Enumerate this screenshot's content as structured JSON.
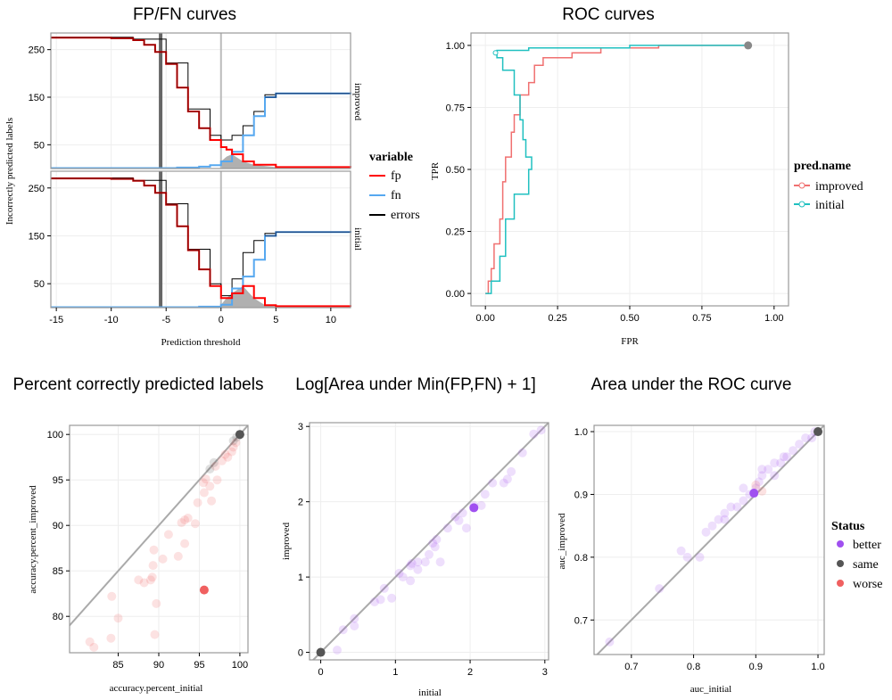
{
  "titles": {
    "fpfn": "FP/FN curves",
    "roc": "ROC curves",
    "acc": "Percent correctly predicted labels",
    "logarea": "Log[Area under Min(FP,FN) + 1]",
    "auc": "Area under the ROC curve"
  },
  "colors": {
    "fp": "#ff0000",
    "fp_dark": "#8b0000",
    "fn": "#56a8f0",
    "fn_dark": "#1f4e8a",
    "errors": "#000000",
    "improved": "#f07070",
    "initial": "#20c0c0",
    "better": "#a050f0",
    "same": "#555555",
    "worse": "#f06060",
    "threshold_line": "#666666",
    "zero_line": "#bbbbbb",
    "diag": "#aaaaaa",
    "fill": "#b0b0b0"
  },
  "chart_data": [
    {
      "type": "line",
      "title": "FP/FN curves",
      "xlabel": "Prediction threshold",
      "ylabel": "Incorrectly predicted labels",
      "xlim": [
        -15.5,
        11.8
      ],
      "ylim": [
        0,
        285
      ],
      "xticks": [
        "-15",
        "-10",
        "-5",
        "0",
        "5",
        "10"
      ],
      "yticks": [
        "50",
        "150",
        "250"
      ],
      "facets": [
        "improved",
        "initial"
      ],
      "legend": {
        "title": "variable",
        "entries": [
          "fp",
          "fn",
          "errors"
        ]
      },
      "threshold_marker": -5.5,
      "series": {
        "improved": {
          "fp": [
            [
              -15.5,
              275
            ],
            [
              -10,
              274
            ],
            [
              -8,
              270
            ],
            [
              -7,
              260
            ],
            [
              -6,
              245
            ],
            [
              -5,
              220
            ],
            [
              -4,
              170
            ],
            [
              -3,
              120
            ],
            [
              -2,
              85
            ],
            [
              -1,
              60
            ],
            [
              0,
              45
            ],
            [
              0.5,
              40
            ],
            [
              1,
              30
            ],
            [
              2,
              15
            ],
            [
              3,
              8
            ],
            [
              5,
              3
            ],
            [
              11.8,
              2
            ]
          ],
          "fn": [
            [
              -15.5,
              1
            ],
            [
              -4,
              2
            ],
            [
              -2,
              4
            ],
            [
              -1,
              7
            ],
            [
              0,
              15
            ],
            [
              1,
              35
            ],
            [
              2,
              70
            ],
            [
              3,
              110
            ],
            [
              4,
              150
            ],
            [
              5,
              158
            ],
            [
              11.8,
              160
            ]
          ],
          "errors": [
            [
              -15.5,
              276
            ],
            [
              -8,
              272
            ],
            [
              -5,
              222
            ],
            [
              -3,
              125
            ],
            [
              -1,
              70
            ],
            [
              0,
              60
            ],
            [
              1,
              70
            ],
            [
              2,
              90
            ],
            [
              3,
              120
            ],
            [
              4,
              155
            ],
            [
              5,
              158
            ],
            [
              11.8,
              160
            ]
          ]
        },
        "initial": {
          "fp": [
            [
              -15.5,
              270
            ],
            [
              -10,
              269
            ],
            [
              -8,
              265
            ],
            [
              -7,
              255
            ],
            [
              -6,
              240
            ],
            [
              -5,
              215
            ],
            [
              -4,
              170
            ],
            [
              -3,
              120
            ],
            [
              -2,
              80
            ],
            [
              -1,
              45
            ],
            [
              0,
              20
            ],
            [
              0.5,
              20
            ],
            [
              1,
              30
            ],
            [
              2,
              45
            ],
            [
              3,
              20
            ],
            [
              4,
              5
            ],
            [
              5,
              3
            ],
            [
              11.8,
              2
            ]
          ],
          "fn": [
            [
              -15.5,
              1
            ],
            [
              -2,
              2
            ],
            [
              0,
              6
            ],
            [
              1,
              40
            ],
            [
              2,
              65
            ],
            [
              3,
              100
            ],
            [
              4,
              150
            ],
            [
              5,
              158
            ],
            [
              11.8,
              160
            ]
          ],
          "errors": [
            [
              -15.5,
              271
            ],
            [
              -8,
              266
            ],
            [
              -5,
              217
            ],
            [
              -3,
              122
            ],
            [
              -1,
              50
            ],
            [
              0,
              25
            ],
            [
              1,
              60
            ],
            [
              2,
              115
            ],
            [
              3,
              140
            ],
            [
              4,
              155
            ],
            [
              5,
              158
            ],
            [
              11.8,
              160
            ]
          ]
        }
      }
    },
    {
      "type": "line",
      "title": "ROC curves",
      "xlabel": "FPR",
      "ylabel": "TPR",
      "xlim": [
        -0.05,
        1.05
      ],
      "ylim": [
        -0.05,
        1.05
      ],
      "xticks": [
        "0.00",
        "0.25",
        "0.50",
        "0.75",
        "1.00"
      ],
      "yticks": [
        "0.00",
        "0.25",
        "0.50",
        "0.75",
        "1.00"
      ],
      "legend": {
        "title": "pred.name",
        "entries": [
          "improved",
          "initial"
        ]
      },
      "series": [
        {
          "name": "improved",
          "points": [
            [
              0,
              0
            ],
            [
              0.01,
              0.05
            ],
            [
              0.02,
              0.1
            ],
            [
              0.03,
              0.2
            ],
            [
              0.05,
              0.3
            ],
            [
              0.06,
              0.45
            ],
            [
              0.07,
              0.55
            ],
            [
              0.09,
              0.65
            ],
            [
              0.1,
              0.72
            ],
            [
              0.12,
              0.8
            ],
            [
              0.15,
              0.85
            ],
            [
              0.17,
              0.92
            ],
            [
              0.2,
              0.95
            ],
            [
              0.3,
              0.97
            ],
            [
              0.4,
              0.99
            ],
            [
              0.6,
              1.0
            ],
            [
              0.91,
              1.0
            ]
          ]
        },
        {
          "name": "initial",
          "points": [
            [
              0,
              0
            ],
            [
              0.02,
              0.05
            ],
            [
              0.05,
              0.15
            ],
            [
              0.07,
              0.3
            ],
            [
              0.1,
              0.4
            ],
            [
              0.15,
              0.5
            ],
            [
              0.16,
              0.55
            ],
            [
              0.14,
              0.62
            ],
            [
              0.13,
              0.7
            ],
            [
              0.12,
              0.8
            ],
            [
              0.1,
              0.9
            ],
            [
              0.06,
              0.95
            ],
            [
              0.04,
              0.98
            ],
            [
              0.15,
              0.99
            ],
            [
              0.3,
              0.99
            ],
            [
              0.5,
              1.0
            ],
            [
              0.91,
              1.0
            ]
          ]
        }
      ]
    },
    {
      "type": "scatter",
      "title": "Percent correctly predicted labels",
      "xlabel": "accuracy.percent_initial",
      "ylabel": "accuracy.percent_improved",
      "xlim": [
        79,
        101
      ],
      "ylim": [
        76,
        101
      ],
      "xticks": [
        85,
        90,
        95,
        100
      ],
      "yticks": [
        80,
        85,
        90,
        95,
        100
      ],
      "points": [
        [
          81.5,
          77.2
        ],
        [
          82,
          76.6
        ],
        [
          84.1,
          77.6
        ],
        [
          84.2,
          82.2
        ],
        [
          85.0,
          79.8
        ],
        [
          87.5,
          84.0
        ],
        [
          88.2,
          83.7
        ],
        [
          89,
          84.0
        ],
        [
          89.2,
          84.3
        ],
        [
          89.5,
          78.0
        ],
        [
          89.7,
          81.4
        ],
        [
          89.3,
          85.6
        ],
        [
          89.4,
          87.3
        ],
        [
          90.5,
          86.3
        ],
        [
          91.2,
          89.0
        ],
        [
          92.4,
          86.6
        ],
        [
          92.8,
          90.3
        ],
        [
          93.2,
          90.6
        ],
        [
          93.6,
          90.8
        ],
        [
          93.2,
          88.0
        ],
        [
          94.5,
          90.2
        ],
        [
          94.8,
          92.5
        ],
        [
          95.5,
          94.7
        ],
        [
          95.6,
          93.6
        ],
        [
          95.8,
          95.1
        ],
        [
          96.3,
          94.3
        ],
        [
          96.5,
          92.7
        ],
        [
          97,
          96.5
        ],
        [
          97.2,
          95.0
        ],
        [
          97.8,
          97.1
        ],
        [
          98.2,
          97.8
        ],
        [
          98.5,
          97.5
        ],
        [
          99,
          98.1
        ],
        [
          99.2,
          98.6
        ],
        [
          99.5,
          99.1
        ],
        [
          96.3,
          96.2
        ],
        [
          96.8,
          96.9
        ],
        [
          99.2,
          99.3
        ],
        [
          99.6,
          99.7
        ],
        [
          100,
          100
        ]
      ],
      "status": [
        "worse",
        "worse",
        "worse",
        "worse",
        "worse",
        "worse",
        "worse",
        "worse",
        "worse",
        "worse",
        "worse",
        "worse",
        "worse",
        "worse",
        "worse",
        "worse",
        "worse",
        "worse",
        "worse",
        "worse",
        "worse",
        "worse",
        "worse",
        "worse",
        "worse",
        "worse",
        "worse",
        "worse",
        "worse",
        "worse",
        "worse",
        "worse",
        "worse",
        "worse",
        "worse",
        "same",
        "same",
        "same",
        "same",
        "same"
      ],
      "highlight": {
        "x": 95.6,
        "y": 82.9,
        "status": "worse"
      },
      "highlight_same": {
        "x": 100,
        "y": 100
      }
    },
    {
      "type": "scatter",
      "title": "Log[Area under Min(FP,FN) + 1]",
      "xlabel": "initial",
      "ylabel": "improved",
      "xlim": [
        -0.15,
        3.05
      ],
      "ylim": [
        -0.1,
        3.05
      ],
      "xticks": [
        0,
        1,
        2,
        3
      ],
      "yticks": [
        0,
        1,
        2,
        3
      ],
      "points": [
        [
          0.22,
          0.03
        ],
        [
          0.3,
          0.3
        ],
        [
          0.45,
          0.45
        ],
        [
          0.45,
          0.35
        ],
        [
          0.72,
          0.67
        ],
        [
          0.8,
          0.7
        ],
        [
          0.85,
          0.85
        ],
        [
          0.95,
          0.72
        ],
        [
          1.05,
          1.05
        ],
        [
          1.1,
          1.0
        ],
        [
          1.2,
          1.15
        ],
        [
          1.22,
          1.18
        ],
        [
          1.3,
          1.2
        ],
        [
          1.3,
          1.1
        ],
        [
          1.4,
          1.2
        ],
        [
          1.45,
          1.3
        ],
        [
          1.5,
          1.45
        ],
        [
          1.55,
          1.5
        ],
        [
          1.53,
          1.4
        ],
        [
          1.6,
          1.2
        ],
        [
          1.7,
          1.65
        ],
        [
          1.8,
          1.8
        ],
        [
          1.85,
          1.75
        ],
        [
          1.9,
          1.85
        ],
        [
          1.95,
          1.65
        ],
        [
          2.05,
          1.95
        ],
        [
          2.15,
          1.95
        ],
        [
          2.2,
          2.1
        ],
        [
          2.3,
          2.25
        ],
        [
          2.45,
          2.25
        ],
        [
          2.55,
          2.4
        ],
        [
          2.7,
          2.65
        ],
        [
          2.85,
          2.9
        ],
        [
          2.95,
          2.95
        ],
        [
          2.5,
          2.3
        ],
        [
          1.2,
          0.95
        ]
      ],
      "highlight": {
        "x": 2.05,
        "y": 1.92,
        "status": "better"
      },
      "highlight_same": {
        "x": 0,
        "y": 0
      }
    },
    {
      "type": "scatter",
      "title": "Area under the ROC curve",
      "xlabel": "auc_initial",
      "ylabel": "auc_improved",
      "xlim": [
        0.64,
        1.01
      ],
      "ylim": [
        0.645,
        1.01
      ],
      "xticks": [
        0.7,
        0.8,
        0.9,
        1.0
      ],
      "yticks": [
        0.7,
        0.8,
        0.9,
        1.0
      ],
      "points": [
        [
          0.665,
          0.665
        ],
        [
          0.745,
          0.75
        ],
        [
          0.78,
          0.81
        ],
        [
          0.79,
          0.8
        ],
        [
          0.81,
          0.8
        ],
        [
          0.82,
          0.84
        ],
        [
          0.83,
          0.85
        ],
        [
          0.84,
          0.86
        ],
        [
          0.85,
          0.86
        ],
        [
          0.85,
          0.87
        ],
        [
          0.86,
          0.88
        ],
        [
          0.87,
          0.88
        ],
        [
          0.88,
          0.89
        ],
        [
          0.89,
          0.9
        ],
        [
          0.9,
          0.91
        ],
        [
          0.905,
          0.92
        ],
        [
          0.91,
          0.93
        ],
        [
          0.92,
          0.94
        ],
        [
          0.93,
          0.93
        ],
        [
          0.93,
          0.95
        ],
        [
          0.94,
          0.95
        ],
        [
          0.945,
          0.96
        ],
        [
          0.95,
          0.96
        ],
        [
          0.96,
          0.97
        ],
        [
          0.97,
          0.98
        ],
        [
          0.98,
          0.99
        ],
        [
          0.99,
          0.99
        ],
        [
          0.995,
          1.0
        ],
        [
          0.9,
          0.915
        ],
        [
          0.91,
          0.905
        ],
        [
          0.88,
          0.91
        ],
        [
          0.91,
          0.94
        ]
      ],
      "status": [
        "better",
        "better",
        "better",
        "better",
        "better",
        "better",
        "better",
        "better",
        "better",
        "better",
        "better",
        "better",
        "better",
        "better",
        "better",
        "better",
        "better",
        "better",
        "better",
        "better",
        "better",
        "better",
        "better",
        "better",
        "better",
        "better",
        "better",
        "better",
        "worse",
        "worse",
        "better",
        "better"
      ],
      "highlight": {
        "x": 0.897,
        "y": 0.902,
        "status": "better"
      },
      "highlight_same": {
        "x": 1.0,
        "y": 1.0
      },
      "legend": {
        "title": "Status",
        "entries": [
          "better",
          "same",
          "worse"
        ]
      }
    }
  ]
}
